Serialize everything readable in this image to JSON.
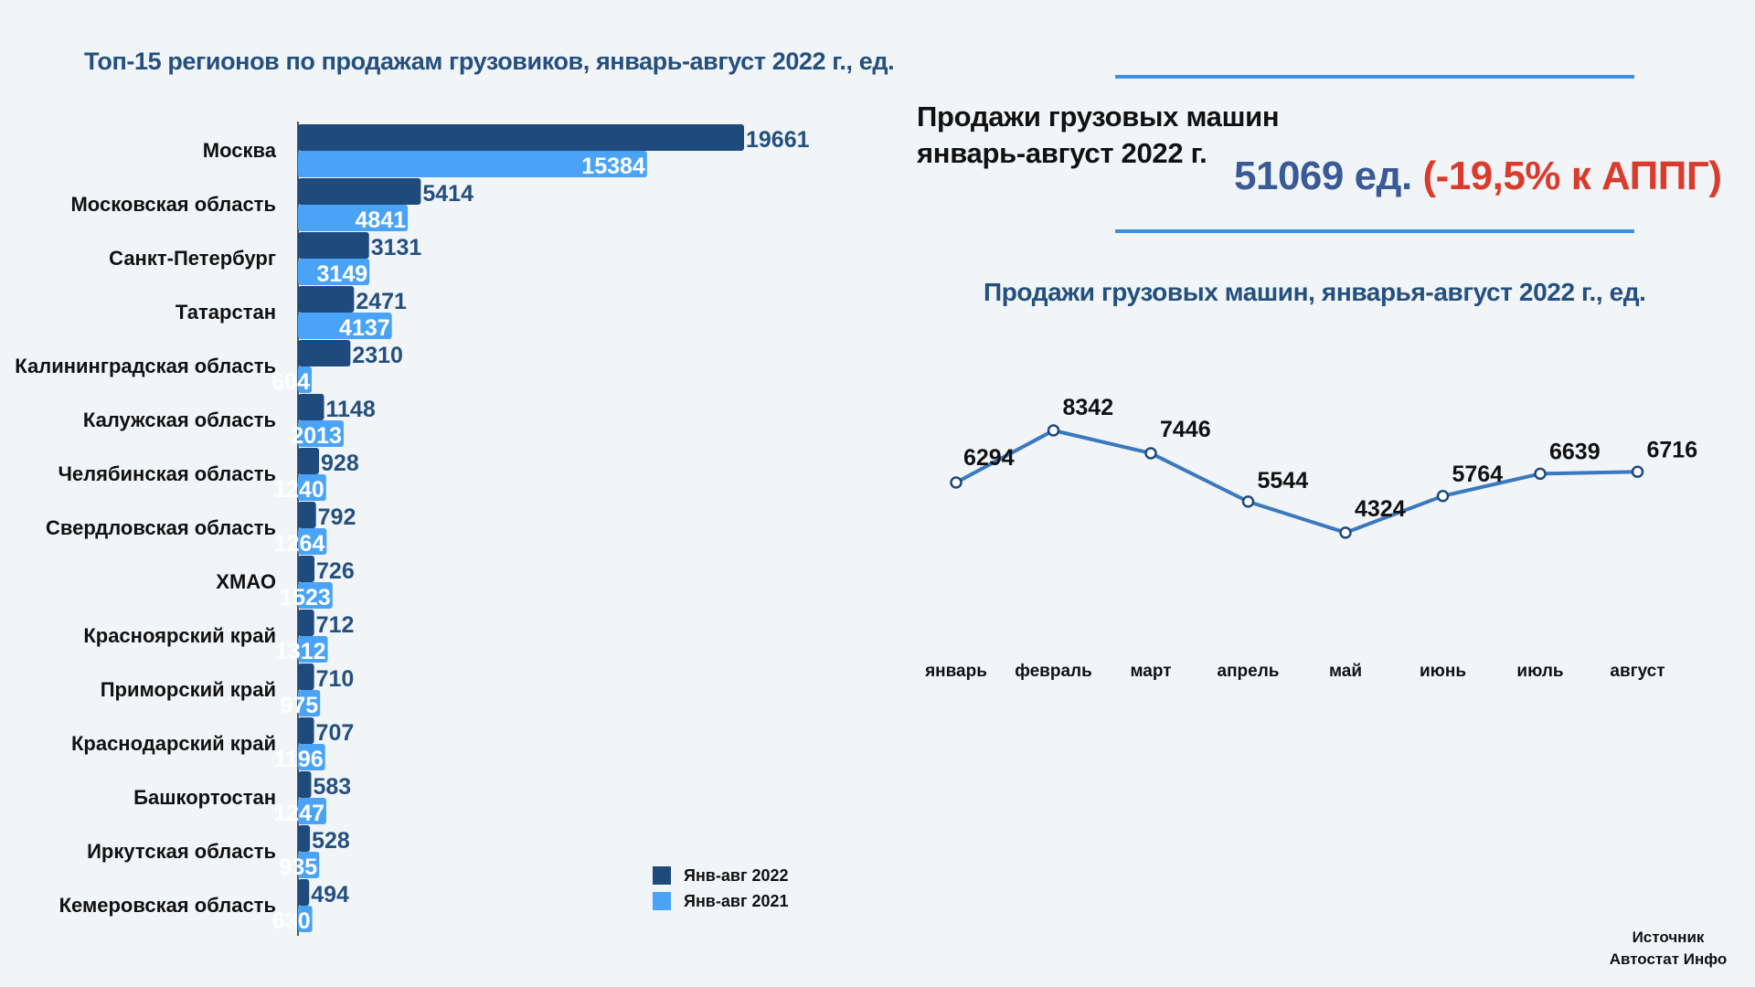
{
  "left_chart": {
    "title": "Топ-15 регионов по продажам грузовиков, январь-август 2022 г., ед.",
    "legend": [
      {
        "label": "Янв-авг 2022",
        "color": "#1f4a7c"
      },
      {
        "label": "Янв-авг 2021",
        "color": "#4aa3f7"
      }
    ]
  },
  "summary": {
    "title_line1": "Продажи грузовых машин",
    "title_line2": "январь-август 2022 г.",
    "value": "51069 ед.",
    "change": "(-19,5% к АППГ)"
  },
  "line_chart": {
    "title": "Продажи грузовых машин, январья-август 2022 г., ед."
  },
  "source": {
    "line1": "Источник",
    "line2": "Автостат Инфо"
  },
  "chart_data": [
    {
      "type": "bar",
      "orientation": "horizontal",
      "title": "Топ-15 регионов по продажам грузовиков, январь-август 2022 г., ед.",
      "categories": [
        "Москва",
        "Московская область",
        "Санкт-Петербург",
        "Татарстан",
        "Калининградская область",
        "Калужская область",
        "Челябинская область",
        "Свердловская область",
        "ХМАО",
        "Красноярский край",
        "Приморский край",
        "Краснодарский край",
        "Башкортостан",
        "Иркутская область",
        "Кемеровская область"
      ],
      "series": [
        {
          "name": "Янв-авг 2022",
          "values": [
            19661,
            5414,
            3131,
            2471,
            2310,
            1148,
            928,
            792,
            726,
            712,
            710,
            707,
            583,
            528,
            494
          ]
        },
        {
          "name": "Янв-авг 2021",
          "values": [
            15384,
            4841,
            3149,
            4137,
            604,
            2013,
            1240,
            1264,
            1523,
            1312,
            975,
            1196,
            1247,
            935,
            630
          ]
        }
      ],
      "legend_position": "bottom-right"
    },
    {
      "type": "line",
      "title": "Продажи грузовых машин, январья-август 2022 г., ед.",
      "categories": [
        "январь",
        "февраль",
        "март",
        "апрель",
        "май",
        "июнь",
        "июль",
        "август"
      ],
      "values": [
        6294,
        8342,
        7446,
        5544,
        4324,
        5764,
        6639,
        6716
      ],
      "ylim": [
        0,
        9000
      ],
      "grid": false
    }
  ]
}
